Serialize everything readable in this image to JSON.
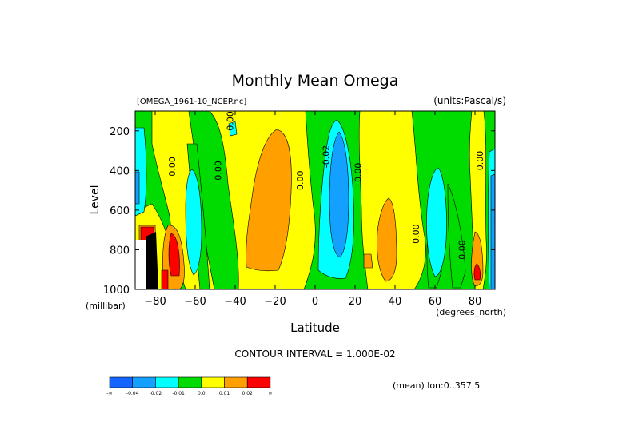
{
  "chart_data": {
    "type": "heatmap",
    "title": "Monthly Mean Omega",
    "subtitle_left": "[OMEGA_1961-10_NCEP.nc]",
    "subtitle_right": "(units:Pascal/s)",
    "xlabel": "Latitude",
    "x_units": "(degrees_north)",
    "ylabel": "Level",
    "y_units": "(millibar)",
    "xlim": [
      -90,
      90
    ],
    "ylim": [
      1000,
      100
    ],
    "x_ticks": [
      -80,
      -60,
      -40,
      -20,
      0,
      20,
      40,
      60,
      80
    ],
    "x_tick_labels": [
      "−80",
      "−60",
      "−40",
      "−20",
      "0",
      "20",
      "40",
      "60",
      "80"
    ],
    "y_ticks": [
      200,
      400,
      600,
      800,
      1000
    ],
    "y_tick_labels": [
      "200",
      "400",
      "600",
      "800",
      "1000"
    ],
    "contour_interval_text": "CONTOUR INTERVAL = 1.000E-02",
    "contour_labels": [
      {
        "text": "0.00",
        "lat": -70,
        "level": 380
      },
      {
        "text": "0.00",
        "lat": -41,
        "level": 150
      },
      {
        "text": "0.00",
        "lat": -47,
        "level": 400
      },
      {
        "text": "0.00",
        "lat": -6,
        "level": 450
      },
      {
        "text": "-0.02",
        "lat": 7,
        "level": 330
      },
      {
        "text": "0.00",
        "lat": 23,
        "level": 410
      },
      {
        "text": "0.00",
        "lat": 52,
        "level": 720
      },
      {
        "text": "0.00",
        "lat": 75,
        "level": 800
      },
      {
        "text": "0.00",
        "lat": 84,
        "level": 350
      }
    ],
    "colorbar": {
      "colors": [
        "#1464ff",
        "#14a0ff",
        "#00ffff",
        "#00dc00",
        "#ffff00",
        "#ffa000",
        "#ff0000"
      ],
      "labels": [
        "-∞",
        "-0.04",
        "-0.02",
        "-0.01",
        "0.0",
        "0.01",
        "0.02",
        "∞"
      ]
    },
    "annotation": "(mean) lon:0..357.5",
    "grid": false
  }
}
